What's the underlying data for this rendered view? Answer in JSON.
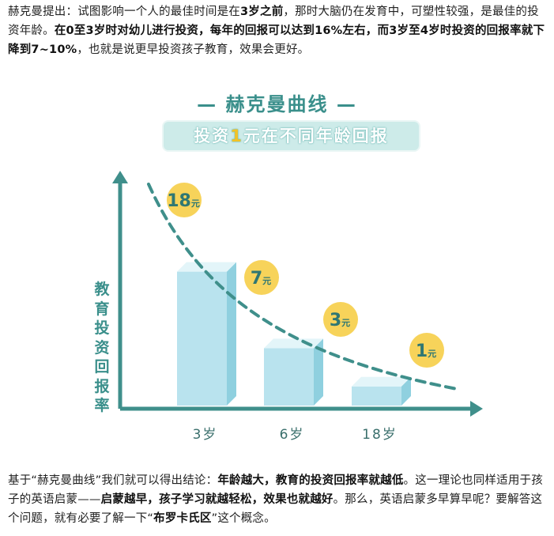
{
  "intro": {
    "p1": "赫克曼提出：试图影响一个人的最佳时间是在",
    "b1": "3岁之前",
    "p2": "，那时大脑仍在发育中，可塑性较强，是最佳的投资年龄。",
    "b2": "在0至3岁时对幼儿进行投资，每年的回报可以达到16%左右，而3岁至4岁时投资的回报率就下降到7~10%",
    "p3": "，也就是说更早投资孩子教育，效果会更好。"
  },
  "outro": {
    "p1": "基于“赫克曼曲线”我们就可以得出结论：",
    "b1": "年龄越大，教育的投资回报率就越低",
    "p2": "。这一理论也同样适用于孩子的英语启蒙——",
    "b2": "启蒙越早，孩子学习就越轻松，效果也就越好",
    "p3": "。那么，英语启蒙多早算早呢？要解答这个问题，就有必要了解一下“",
    "b3": "布罗卡氏区",
    "p4": "”这个概念。"
  },
  "chart_data": {
    "type": "bar",
    "title": "— 赫克曼曲线 —",
    "subtitle_pre": "投资",
    "subtitle_num": "1",
    "subtitle_post": "元在不同年龄回报",
    "ylabel": "教育投资回报率",
    "xlabel": "",
    "categories": [
      "3岁",
      "6岁",
      "18岁"
    ],
    "values": [
      7,
      3,
      1
    ],
    "curve_labels": [
      {
        "num": "18",
        "unit": "元",
        "value": 18
      },
      {
        "num": "7",
        "unit": "元",
        "value": 7
      },
      {
        "num": "3",
        "unit": "元",
        "value": 3
      },
      {
        "num": "1",
        "unit": "元",
        "value": 1
      }
    ],
    "curve": "dashed decreasing",
    "colors": {
      "axis": "#3f8f8b",
      "curve": "#3f8f8b",
      "bar_front": "#b9e3ee",
      "bar_side": "#8fd0df",
      "bar_top": "#e3f5f9",
      "badge": "#f7d35a",
      "badge_text": "#2f7773"
    }
  }
}
